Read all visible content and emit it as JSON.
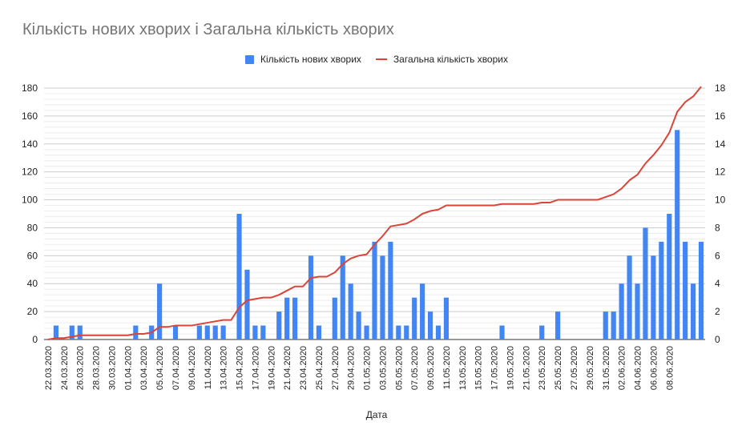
{
  "chart_data": {
    "type": "bar+line",
    "title": "Кількість нових хворих і Загальна кількість хворих",
    "xlabel": "Дата",
    "legend": "top",
    "left_axis": {
      "min": 0,
      "max": 180,
      "ticks": [
        "0",
        "20",
        "40",
        "60",
        "80",
        "100",
        "120",
        "140",
        "160",
        "180"
      ]
    },
    "right_axis": {
      "min": 0,
      "max": 18,
      "ticks": [
        "0",
        "2",
        "4",
        "6",
        "8",
        "10",
        "12",
        "14",
        "16",
        "18"
      ]
    },
    "x_tick_labels": [
      "22.03.2020",
      "24.03.2020",
      "26.03.2020",
      "28.03.2020",
      "30.03.2020",
      "01.04.2020",
      "03.04.2020",
      "05.04.2020",
      "07.04.2020",
      "09.04.2020",
      "11.04.2020",
      "13.04.2020",
      "15.04.2020",
      "17.04.2020",
      "19.04.2020",
      "21.04.2020",
      "23.04.2020",
      "25.04.2020",
      "27.04.2020",
      "29.04.2020",
      "01.05.2020",
      "03.05.2020",
      "05.05.2020",
      "07.05.2020",
      "09.05.2020",
      "11.05.2020",
      "13.05.2020",
      "15.05.2020",
      "17.05.2020",
      "19.05.2020",
      "21.05.2020",
      "23.05.2020",
      "25.05.2020",
      "27.05.2020",
      "29.05.2020",
      "31.05.2020",
      "02.06.2020",
      "04.06.2020",
      "06.06.2020",
      "08.06.2020"
    ],
    "series": [
      {
        "name": "Кількість нових хворих",
        "type": "bar",
        "axis": "left",
        "color": "#4285f4",
        "values": [
          0,
          10,
          0,
          10,
          10,
          0,
          0,
          0,
          0,
          0,
          0,
          10,
          0,
          10,
          40,
          0,
          10,
          0,
          0,
          10,
          10,
          10,
          10,
          0,
          90,
          50,
          10,
          10,
          0,
          20,
          30,
          30,
          0,
          60,
          10,
          0,
          30,
          60,
          40,
          20,
          10,
          70,
          60,
          70,
          10,
          10,
          30,
          40,
          20,
          10,
          30,
          0,
          0,
          0,
          0,
          0,
          0,
          10,
          0,
          0,
          0,
          0,
          10,
          0,
          20,
          0,
          0,
          0,
          0,
          0,
          20,
          20,
          40,
          60,
          40,
          80,
          60,
          70,
          90,
          150,
          70,
          40,
          70
        ]
      },
      {
        "name": "Загальна кількість хворих",
        "type": "line",
        "axis": "right",
        "color": "#db4437",
        "values": [
          0,
          0.1,
          0.1,
          0.2,
          0.3,
          0.3,
          0.3,
          0.3,
          0.3,
          0.3,
          0.3,
          0.4,
          0.4,
          0.5,
          0.9,
          0.9,
          1,
          1,
          1,
          1.1,
          1.2,
          1.3,
          1.4,
          1.4,
          2.3,
          2.8,
          2.9,
          3,
          3,
          3.2,
          3.5,
          3.8,
          3.8,
          4.4,
          4.5,
          4.5,
          4.8,
          5.4,
          5.8,
          6,
          6.1,
          6.8,
          7.4,
          8.1,
          8.2,
          8.3,
          8.6,
          9,
          9.2,
          9.3,
          9.6,
          9.6,
          9.6,
          9.6,
          9.6,
          9.6,
          9.6,
          9.7,
          9.7,
          9.7,
          9.7,
          9.7,
          9.8,
          9.8,
          10,
          10,
          10,
          10,
          10,
          10,
          10.2,
          10.4,
          10.8,
          11.4,
          11.8,
          12.6,
          13.2,
          13.9,
          14.8,
          16.3,
          17,
          17.4,
          18.1
        ]
      }
    ]
  }
}
